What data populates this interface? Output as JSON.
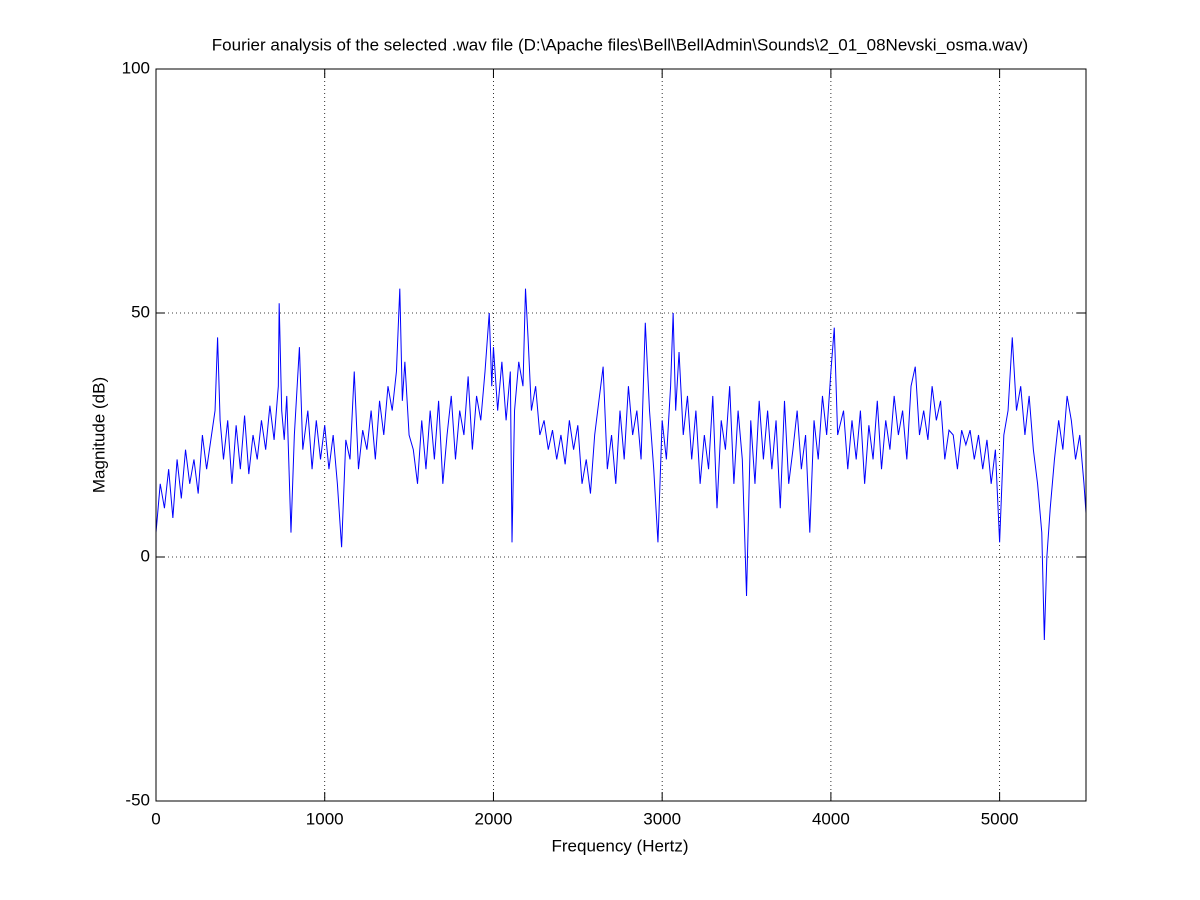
{
  "chart_data": {
    "type": "line",
    "title": "Fourier analysis of the selected .wav file (D:\\Apache files\\Bell\\BellAdmin\\Sounds\\2_01_08Nevski_osma.wav)",
    "x_label": "Frequency (Hertz)",
    "y_label": "Magnitude (dB)",
    "xlim": [
      0,
      5512
    ],
    "ylim": [
      -50,
      100
    ],
    "xticks": [
      0,
      1000,
      2000,
      3000,
      4000,
      5000
    ],
    "yticks": [
      -50,
      0,
      50,
      100
    ],
    "grid": true,
    "series": [
      {
        "name": "Magnitude",
        "color": "#0000ff",
        "x": [
          0,
          25,
          50,
          75,
          100,
          125,
          150,
          175,
          200,
          225,
          250,
          275,
          300,
          325,
          350,
          365,
          380,
          400,
          425,
          450,
          475,
          500,
          525,
          550,
          575,
          600,
          625,
          650,
          675,
          700,
          725,
          730,
          745,
          760,
          775,
          800,
          820,
          850,
          870,
          900,
          925,
          950,
          975,
          1000,
          1025,
          1050,
          1075,
          1100,
          1125,
          1150,
          1175,
          1200,
          1225,
          1250,
          1275,
          1300,
          1325,
          1350,
          1375,
          1400,
          1425,
          1445,
          1460,
          1475,
          1500,
          1525,
          1550,
          1575,
          1600,
          1625,
          1650,
          1675,
          1700,
          1725,
          1750,
          1775,
          1800,
          1825,
          1850,
          1875,
          1900,
          1925,
          1950,
          1975,
          1990,
          2000,
          2025,
          2050,
          2075,
          2100,
          2110,
          2125,
          2150,
          2175,
          2190,
          2205,
          2225,
          2250,
          2275,
          2300,
          2325,
          2350,
          2375,
          2400,
          2425,
          2450,
          2475,
          2500,
          2525,
          2550,
          2575,
          2600,
          2625,
          2650,
          2675,
          2700,
          2725,
          2750,
          2775,
          2800,
          2825,
          2850,
          2875,
          2900,
          2925,
          2950,
          2975,
          3000,
          3025,
          3050,
          3065,
          3080,
          3100,
          3125,
          3150,
          3175,
          3200,
          3225,
          3250,
          3275,
          3300,
          3325,
          3350,
          3375,
          3400,
          3425,
          3450,
          3475,
          3500,
          3525,
          3550,
          3575,
          3600,
          3625,
          3650,
          3675,
          3700,
          3725,
          3750,
          3775,
          3800,
          3825,
          3850,
          3875,
          3900,
          3925,
          3950,
          3975,
          4000,
          4020,
          4040,
          4075,
          4100,
          4125,
          4150,
          4175,
          4200,
          4225,
          4250,
          4275,
          4300,
          4325,
          4350,
          4375,
          4400,
          4425,
          4450,
          4475,
          4500,
          4525,
          4550,
          4575,
          4600,
          4625,
          4650,
          4675,
          4700,
          4725,
          4750,
          4775,
          4800,
          4825,
          4850,
          4875,
          4900,
          4925,
          4950,
          4975,
          5000,
          5025,
          5050,
          5075,
          5100,
          5125,
          5150,
          5175,
          5200,
          5225,
          5250,
          5265,
          5280,
          5300,
          5325,
          5350,
          5375,
          5400,
          5425,
          5450,
          5475,
          5500,
          5512
        ],
        "values": [
          5,
          15,
          10,
          18,
          8,
          20,
          12,
          22,
          15,
          20,
          13,
          25,
          18,
          24,
          30,
          45,
          28,
          20,
          28,
          15,
          27,
          18,
          29,
          17,
          25,
          20,
          28,
          22,
          31,
          24,
          35,
          52,
          30,
          24,
          33,
          5,
          25,
          43,
          22,
          30,
          18,
          28,
          20,
          27,
          18,
          25,
          15,
          2,
          24,
          20,
          38,
          18,
          26,
          22,
          30,
          20,
          32,
          25,
          35,
          30,
          38,
          55,
          32,
          40,
          25,
          22,
          15,
          28,
          18,
          30,
          20,
          32,
          15,
          25,
          33,
          20,
          30,
          25,
          37,
          22,
          33,
          28,
          38,
          50,
          35,
          43,
          30,
          40,
          28,
          38,
          3,
          30,
          40,
          35,
          55,
          45,
          30,
          35,
          25,
          28,
          22,
          26,
          20,
          25,
          19,
          28,
          22,
          27,
          15,
          20,
          13,
          25,
          32,
          39,
          18,
          25,
          15,
          30,
          20,
          35,
          25,
          30,
          20,
          48,
          30,
          18,
          3,
          28,
          20,
          35,
          50,
          30,
          42,
          25,
          33,
          20,
          30,
          15,
          25,
          18,
          33,
          10,
          28,
          22,
          35,
          15,
          30,
          20,
          -8,
          28,
          15,
          32,
          20,
          30,
          18,
          28,
          10,
          32,
          15,
          22,
          30,
          18,
          25,
          5,
          28,
          20,
          33,
          25,
          38,
          47,
          25,
          30,
          18,
          28,
          20,
          30,
          15,
          27,
          20,
          32,
          18,
          28,
          22,
          33,
          25,
          30,
          20,
          35,
          39,
          25,
          30,
          24,
          35,
          28,
          32,
          20,
          26,
          25,
          18,
          26,
          23,
          26,
          20,
          25,
          18,
          24,
          15,
          22,
          3,
          25,
          30,
          45,
          30,
          35,
          25,
          33,
          22,
          15,
          5,
          -17,
          0,
          10,
          20,
          28,
          22,
          33,
          28,
          20,
          25,
          15,
          9
        ]
      }
    ]
  }
}
